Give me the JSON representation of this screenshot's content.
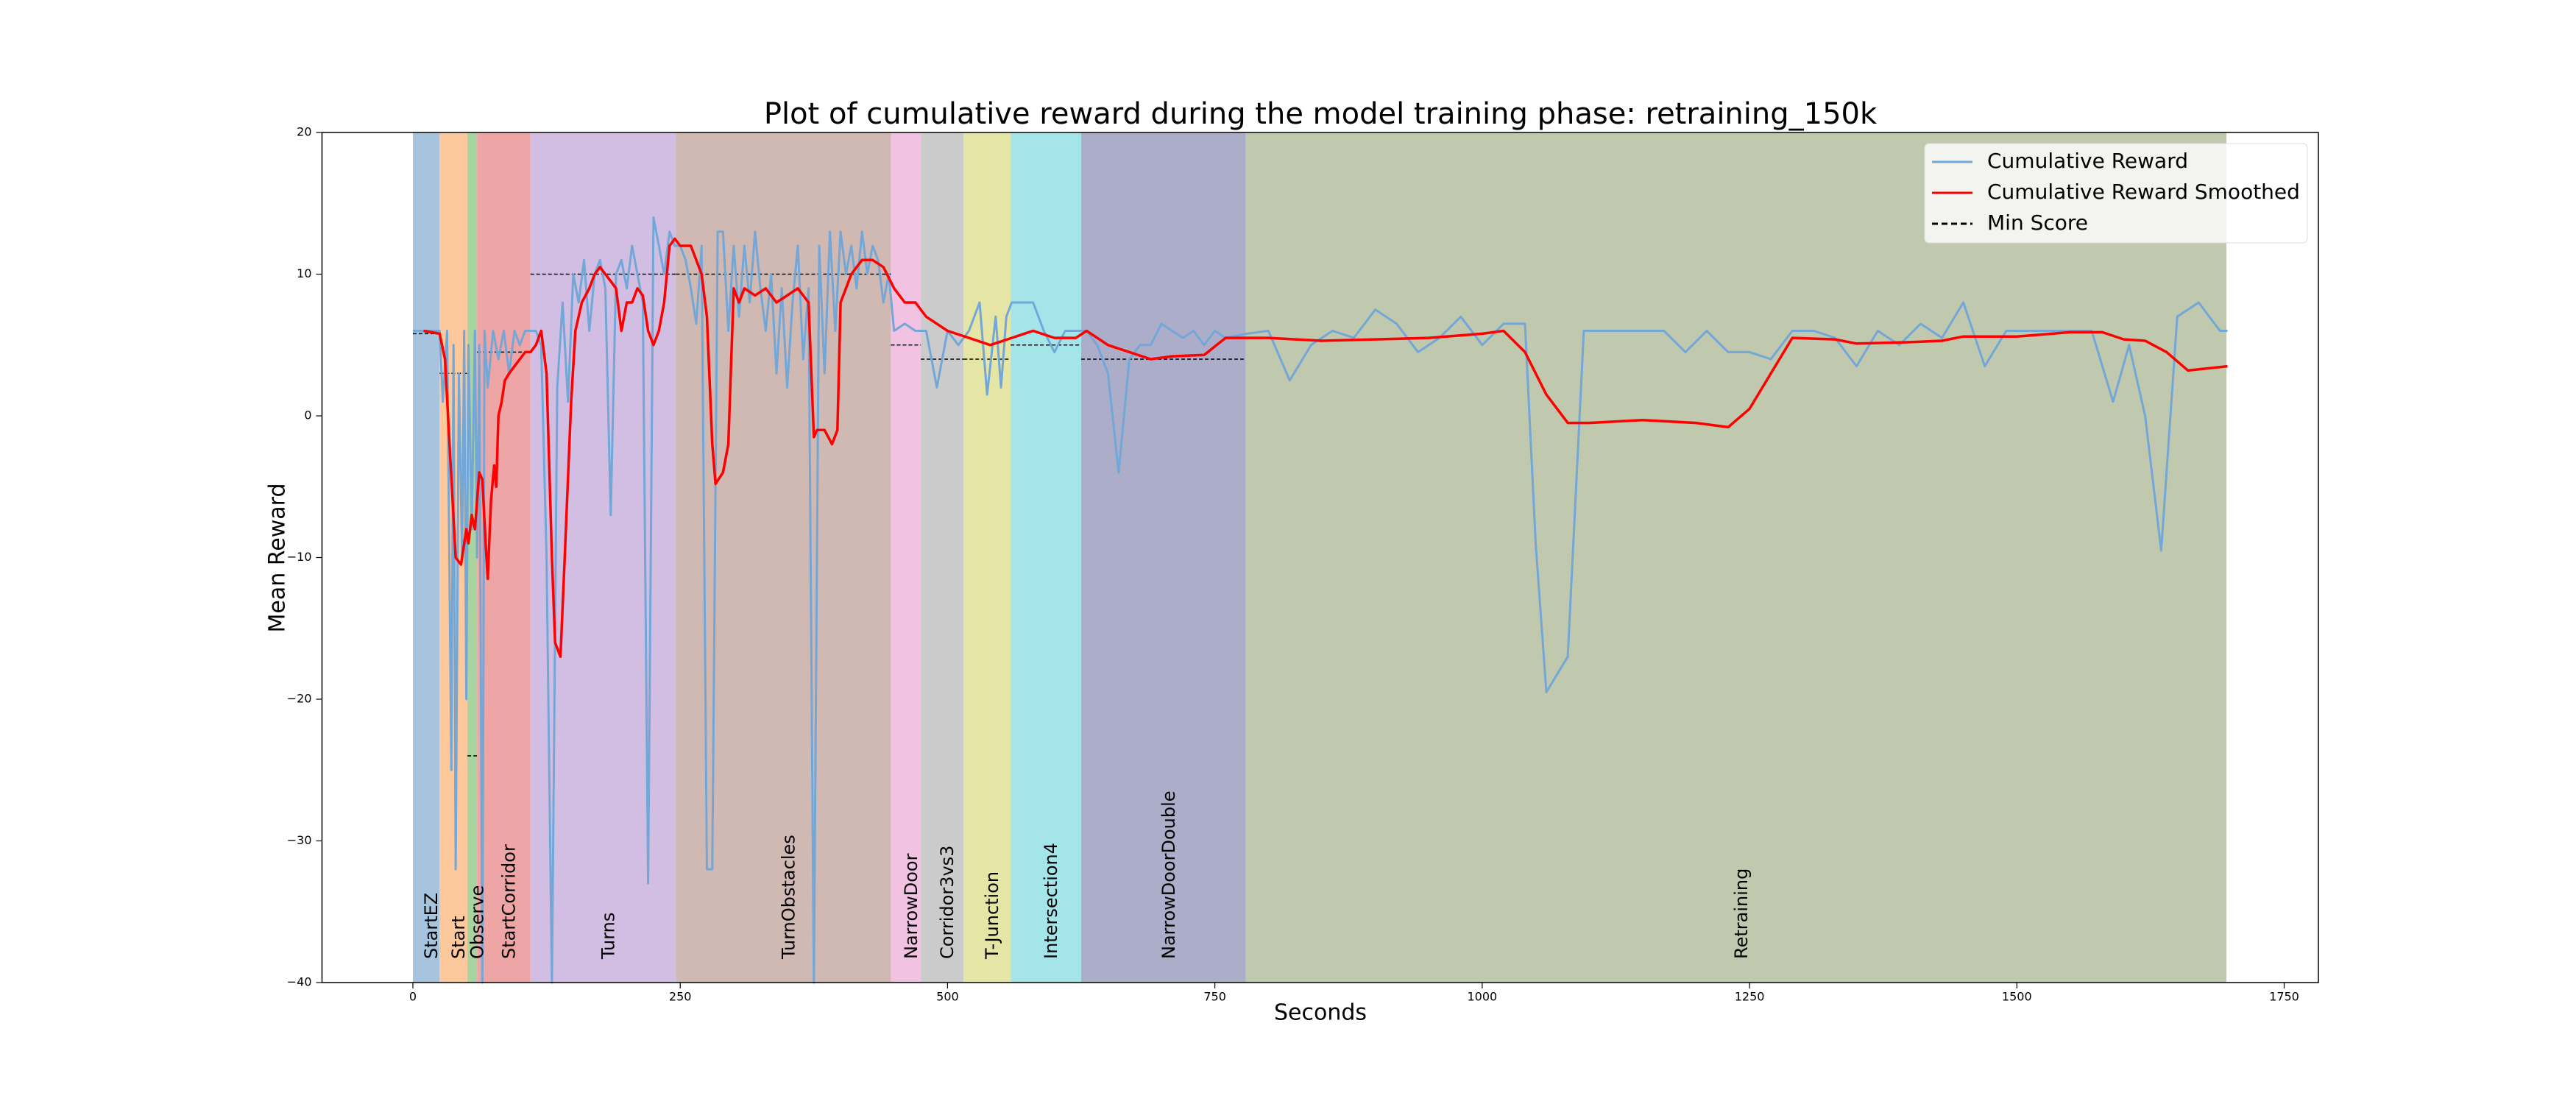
{
  "chart_data": {
    "type": "line",
    "title": "Plot of cumulative reward during the model training phase: retraining_150k",
    "xlabel": "Seconds",
    "ylabel": "Mean Reward",
    "xlim": [
      -85,
      1782
    ],
    "ylim": [
      -40,
      20
    ],
    "xticks": [
      0,
      250,
      500,
      750,
      1000,
      1250,
      1500,
      1750
    ],
    "yticks": [
      {
        "value": -40,
        "label": "−40"
      },
      {
        "value": -30,
        "label": "−30"
      },
      {
        "value": -20,
        "label": "−20"
      },
      {
        "value": -10,
        "label": "−10"
      },
      0,
      10,
      20
    ],
    "legend": "upper right",
    "regions": [
      {
        "label": "StartEZ",
        "start": 0,
        "end": 25,
        "color": "#a6c4de",
        "min_score": 5.8
      },
      {
        "label": "Start",
        "start": 25,
        "end": 51,
        "color": "#fdc89b",
        "min_score": 3
      },
      {
        "label": "Observe",
        "start": 51,
        "end": 60,
        "color": "#a9d4a0",
        "min_score": -24
      },
      {
        "label": "StartCorridor",
        "start": 60,
        "end": 110,
        "color": "#eea5a5",
        "min_score": 4.5
      },
      {
        "label": "Turns",
        "start": 110,
        "end": 246,
        "color": "#d2bee2",
        "min_score": 10
      },
      {
        "label": "TurnObstacles",
        "start": 246,
        "end": 447,
        "color": "#d0b8b3",
        "min_score": 10
      },
      {
        "label": "NarrowDoor",
        "start": 447,
        "end": 475,
        "color": "#f1c2e2",
        "min_score": 5
      },
      {
        "label": "Corridor3vs3",
        "start": 475,
        "end": 515,
        "color": "#cbcbcb",
        "min_score": 4
      },
      {
        "label": "T-Junction",
        "start": 515,
        "end": 559,
        "color": "#e5e5a5",
        "min_score": 4
      },
      {
        "label": "Intersection4",
        "start": 559,
        "end": 625,
        "color": "#a4e5ea",
        "min_score": 5
      },
      {
        "label": "NarrowDoorDouble",
        "start": 625,
        "end": 779,
        "color": "#acadc9",
        "min_score": 4
      },
      {
        "label": "Retraining",
        "start": 779,
        "end": 1696,
        "color": "#c0c8ae",
        "min_score": null
      }
    ],
    "min_score": {
      "name": "Min Score",
      "color": "#000000"
    },
    "series": [
      {
        "name": "Cumulative Reward",
        "color": "#72a7d8",
        "x": [
          0,
          10,
          20,
          25,
          28,
          32,
          36,
          38,
          40,
          43,
          46,
          48,
          50,
          52,
          55,
          58,
          60,
          62,
          65,
          67,
          70,
          75,
          80,
          85,
          90,
          95,
          100,
          105,
          110,
          115,
          120,
          125,
          130,
          135,
          140,
          145,
          150,
          155,
          160,
          165,
          170,
          175,
          180,
          185,
          190,
          195,
          200,
          205,
          210,
          215,
          220,
          225,
          230,
          235,
          240,
          245,
          250,
          255,
          260,
          265,
          270,
          275,
          280,
          285,
          290,
          295,
          300,
          305,
          310,
          315,
          320,
          325,
          330,
          335,
          340,
          345,
          350,
          355,
          360,
          365,
          370,
          375,
          380,
          385,
          390,
          395,
          400,
          405,
          410,
          415,
          420,
          425,
          430,
          435,
          440,
          445,
          450,
          460,
          470,
          480,
          490,
          500,
          510,
          520,
          530,
          537,
          545,
          550,
          555,
          560,
          570,
          580,
          590,
          600,
          610,
          620,
          630,
          640,
          650,
          660,
          670,
          680,
          690,
          700,
          710,
          720,
          730,
          740,
          750,
          760,
          780,
          800,
          820,
          840,
          860,
          880,
          900,
          920,
          940,
          960,
          980,
          1000,
          1020,
          1040,
          1050,
          1060,
          1080,
          1095,
          1120,
          1150,
          1170,
          1190,
          1210,
          1230,
          1250,
          1270,
          1290,
          1310,
          1330,
          1350,
          1370,
          1390,
          1410,
          1430,
          1450,
          1470,
          1490,
          1510,
          1530,
          1550,
          1570,
          1590,
          1605,
          1620,
          1635,
          1650,
          1670,
          1690,
          1697
        ],
        "values": [
          6,
          6,
          6,
          6,
          1,
          6,
          -25,
          5,
          -32,
          3,
          -10,
          6,
          -20,
          5,
          -8,
          6,
          -10,
          5,
          -40,
          6,
          2,
          6,
          4,
          6,
          3,
          6,
          5,
          6,
          6,
          6,
          5,
          -10,
          -40,
          2,
          8,
          1,
          10,
          8,
          11,
          6,
          10,
          11,
          9,
          -7,
          10,
          11,
          9,
          12,
          10,
          8,
          -33,
          14,
          12,
          10,
          13,
          12,
          12,
          11,
          9,
          6.5,
          12,
          -32,
          -32,
          13,
          13,
          6,
          12,
          7,
          12,
          8,
          13,
          9,
          6,
          10,
          3,
          9,
          2,
          8,
          12,
          4,
          9,
          -40,
          12,
          3,
          13,
          6,
          13,
          10,
          12,
          9,
          13,
          10,
          12,
          11,
          8,
          10,
          6,
          6.5,
          6,
          6,
          2,
          6,
          5,
          6,
          8,
          1.5,
          7,
          2,
          7,
          8,
          8,
          8,
          6,
          4.5,
          6,
          6,
          6,
          5,
          3,
          -4,
          4,
          5,
          5,
          6.5,
          6,
          5.5,
          6,
          5,
          6,
          5.5,
          5.8,
          6,
          2.5,
          5,
          6,
          5.5,
          7.5,
          6.5,
          4.5,
          5.5,
          7,
          5,
          6.5,
          6.5,
          -9,
          -19.5,
          -17,
          6,
          6,
          6,
          6,
          4.5,
          6,
          4.5,
          4.5,
          4,
          6,
          6,
          5.5,
          3.5,
          6,
          5,
          6.5,
          5.5,
          8,
          3.5,
          6,
          6,
          6,
          6,
          6,
          1,
          5,
          0,
          -9.5,
          7,
          8,
          6,
          6
        ]
      },
      {
        "name": "Cumulative Reward Smoothed",
        "color": "#ff0000",
        "x": [
          10,
          25,
          30,
          35,
          40,
          45,
          50,
          52,
          55,
          58,
          62,
          65,
          68,
          70,
          73,
          76,
          78,
          80,
          83,
          86,
          90,
          95,
          100,
          105,
          110,
          115,
          120,
          125,
          130,
          133,
          138,
          142,
          148,
          152,
          158,
          165,
          170,
          175,
          180,
          185,
          190,
          195,
          200,
          205,
          210,
          215,
          220,
          225,
          230,
          235,
          240,
          245,
          250,
          255,
          260,
          265,
          270,
          275,
          280,
          283,
          290,
          295,
          300,
          305,
          310,
          320,
          330,
          340,
          350,
          360,
          370,
          375,
          378,
          385,
          392,
          397,
          400,
          410,
          420,
          430,
          440,
          450,
          460,
          470,
          480,
          490,
          500,
          520,
          540,
          560,
          580,
          600,
          620,
          630,
          640,
          650,
          670,
          690,
          710,
          740,
          760,
          800,
          850,
          900,
          950,
          1000,
          1020,
          1040,
          1060,
          1080,
          1100,
          1150,
          1200,
          1230,
          1250,
          1270,
          1290,
          1330,
          1350,
          1400,
          1430,
          1450,
          1500,
          1550,
          1580,
          1600,
          1620,
          1640,
          1660,
          1697
        ],
        "values": [
          6,
          5.8,
          4,
          -3,
          -10,
          -10.5,
          -8,
          -9,
          -7,
          -8,
          -4,
          -4.5,
          -9,
          -11.5,
          -6,
          -3.5,
          -5,
          0,
          1,
          2.5,
          3,
          3.5,
          4,
          4.5,
          4.5,
          5,
          6,
          3,
          -10,
          -16,
          -17,
          -10,
          1,
          6,
          8,
          9,
          10,
          10.5,
          10,
          9.5,
          9,
          6,
          8,
          8,
          9,
          8.5,
          6,
          5,
          6,
          8,
          12,
          12.5,
          12,
          12,
          12,
          11,
          10,
          7,
          -2,
          -4.8,
          -4,
          -2,
          9,
          8,
          9,
          8.5,
          9,
          8,
          8.5,
          9,
          8,
          -1.5,
          -1,
          -1,
          -2,
          -1,
          8,
          10,
          11,
          11,
          10.5,
          9,
          8,
          8,
          7,
          6.5,
          6,
          5.5,
          5,
          5.5,
          6,
          5.5,
          5.5,
          6,
          5.5,
          5,
          4.5,
          4,
          4.2,
          4.3,
          5.5,
          5.5,
          5.3,
          5.4,
          5.5,
          5.8,
          6,
          4.5,
          1.5,
          -0.5,
          -0.5,
          -0.3,
          -0.5,
          -0.8,
          0.5,
          3,
          5.5,
          5.4,
          5.1,
          5.2,
          5.3,
          5.6,
          5.6,
          5.9,
          5.9,
          5.4,
          5.3,
          4.5,
          3.2,
          3.5
        ]
      }
    ]
  }
}
